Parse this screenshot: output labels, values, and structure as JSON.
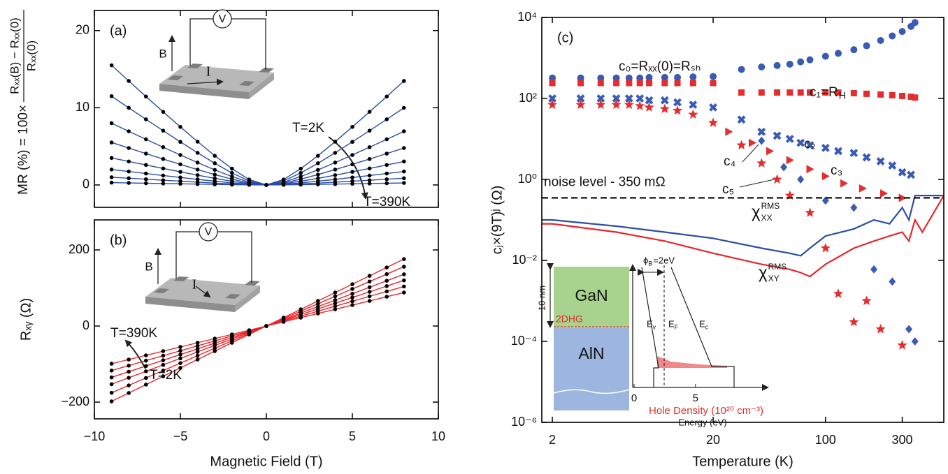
{
  "chart_data": [
    {
      "type": "line",
      "label": "(a)",
      "ylabel_prefix": "MR (%) = 100×",
      "ylabel_num": "Rₓₓ(B) − Rₓₓ(0)",
      "ylabel_den": "Rₓₓ(0)",
      "x": [
        -9,
        -8,
        -7,
        -6,
        -5,
        -4,
        -3,
        -2,
        -1,
        0,
        1,
        2,
        3,
        4,
        5,
        6,
        7,
        8
      ],
      "xlim": [
        -10,
        10
      ],
      "xticks": [
        -10,
        -5,
        0,
        5,
        10
      ],
      "show_xtick_labels": false,
      "ylim": [
        -2.9,
        22.6
      ],
      "yticks": [
        0,
        10,
        20
      ],
      "line_color": "#2b4ea2",
      "marker_color": "#000000",
      "series": [
        {
          "values": [
            15.5,
            13.47,
            11.45,
            9.47,
            7.52,
            5.61,
            3.78,
            2.11,
            0.7,
            0,
            0.7,
            2.11,
            3.78,
            5.61,
            7.52,
            9.47,
            11.45,
            13.47
          ]
        },
        {
          "values": [
            11.5,
            9.99,
            8.5,
            7.03,
            5.58,
            4.16,
            2.81,
            1.56,
            0.52,
            0,
            0.52,
            1.56,
            2.81,
            4.16,
            5.58,
            7.03,
            8.5,
            9.99
          ]
        },
        {
          "values": [
            8,
            6.95,
            5.91,
            4.89,
            3.88,
            2.9,
            1.95,
            1.09,
            0.36,
            0,
            0.36,
            1.09,
            1.95,
            2.9,
            3.88,
            4.89,
            5.91,
            6.95
          ]
        },
        {
          "values": [
            5.5,
            4.78,
            4.06,
            3.36,
            2.67,
            1.99,
            1.34,
            0.75,
            0.25,
            0,
            0.25,
            0.75,
            1.34,
            1.99,
            2.67,
            3.36,
            4.06,
            4.78
          ]
        },
        {
          "values": [
            3.5,
            3.04,
            2.59,
            2.14,
            1.7,
            1.27,
            0.85,
            0.48,
            0.16,
            0,
            0.16,
            0.48,
            0.85,
            1.27,
            1.7,
            2.14,
            2.59,
            3.04
          ]
        },
        {
          "values": [
            2,
            1.74,
            1.48,
            1.22,
            0.97,
            0.72,
            0.49,
            0.27,
            0.09,
            0,
            0.09,
            0.27,
            0.49,
            0.72,
            0.97,
            1.22,
            1.48,
            1.74
          ]
        },
        {
          "values": [
            1,
            0.87,
            0.74,
            0.61,
            0.49,
            0.36,
            0.24,
            0.14,
            0.05,
            0,
            0.05,
            0.14,
            0.24,
            0.36,
            0.49,
            0.61,
            0.74,
            0.87
          ]
        },
        {
          "values": [
            0.3,
            0.26,
            0.22,
            0.18,
            0.15,
            0.11,
            0.07,
            0.04,
            0.01,
            0,
            0.01,
            0.04,
            0.07,
            0.11,
            0.15,
            0.18,
            0.22,
            0.26
          ]
        }
      ],
      "annotations": {
        "t_low": "T=2K",
        "t_high": "T=390K"
      },
      "inset": {
        "b": "B",
        "v": "V",
        "i": "I"
      }
    },
    {
      "type": "line",
      "label": "(b)",
      "xlabel": "Magnetic Field (T)",
      "ylabel": "Rₓᵧ (Ω)",
      "x": [
        -9,
        -8,
        -7,
        -6,
        -5,
        -4,
        -3,
        -2,
        -1,
        0,
        1,
        2,
        3,
        4,
        5,
        6,
        7,
        8
      ],
      "xlim": [
        -10,
        10
      ],
      "xticks": [
        {
          "value": -10,
          "label": "−10"
        },
        {
          "value": -5,
          "label": "−5"
        },
        0,
        5,
        10
      ],
      "ylim": [
        -244,
        279
      ],
      "yticks": [
        {
          "value": -200,
          "label": "−200"
        },
        0,
        200
      ],
      "line_color": "#e8262a",
      "marker_color": "#000000",
      "series": [
        {
          "values": [
            -198,
            -176,
            -154,
            -132,
            -110,
            -88,
            -66,
            -44,
            -22,
            0,
            22,
            44,
            66,
            88,
            110,
            132,
            154,
            176
          ]
        },
        {
          "values": [
            -175.5,
            -156,
            -136.5,
            -117,
            -97.5,
            -78,
            -58.5,
            -39,
            -19.5,
            0,
            19.5,
            39,
            58.5,
            78,
            97.5,
            117,
            136.5,
            156
          ]
        },
        {
          "values": [
            -153,
            -136,
            -119,
            -102,
            -85,
            -68,
            -51,
            -34,
            -17,
            0,
            17,
            34,
            51,
            68,
            85,
            102,
            119,
            136
          ]
        },
        {
          "values": [
            -135,
            -120,
            -105,
            -90,
            -75,
            -60,
            -45,
            -30,
            -15,
            0,
            15,
            30,
            45,
            60,
            75,
            90,
            105,
            120
          ]
        },
        {
          "values": [
            -117,
            -104,
            -91,
            -78,
            -65,
            -52,
            -39,
            -26,
            -13,
            0,
            13,
            26,
            39,
            52,
            65,
            78,
            91,
            104
          ]
        },
        {
          "values": [
            -99,
            -88,
            -77,
            -66,
            -55,
            -44,
            -33,
            -22,
            -11,
            0,
            11,
            22,
            33,
            44,
            55,
            66,
            77,
            88
          ]
        }
      ],
      "annotations": {
        "t_high": "T=390K",
        "t_low": "T=2K"
      },
      "inset": {
        "b": "B",
        "v": "V",
        "i": "I"
      }
    },
    {
      "type": "scatter",
      "label": "(c)",
      "xlabel": "Temperature (K)",
      "ylabel": "cⱼ×(9T)ʲ (Ω)",
      "xscale": "log",
      "yscale": "log",
      "xlim": [
        1.72,
        544
      ],
      "xticks": [
        2,
        20,
        100,
        300
      ],
      "ylim": [
        1e-06,
        10000
      ],
      "yticks": [
        {
          "value": 10000,
          "label": "10⁴"
        },
        {
          "value": 100,
          "label": "10²"
        },
        {
          "value": 1,
          "label": "10⁰"
        },
        {
          "value": 0.01,
          "label": "10⁻²"
        },
        {
          "value": 0.0001,
          "label": "10⁻⁴"
        },
        {
          "value": 1e-06,
          "label": "10⁻⁶"
        }
      ],
      "noise_level": 0.35,
      "noise_label": "noise level - 350 mΩ",
      "series": [
        {
          "name": "c₀=Rₓₓ(0)=Rₛₕ",
          "marker": "circle",
          "color": "#3a5bb5",
          "x": [
            2,
            3,
            4,
            5,
            6,
            7,
            8,
            10,
            12,
            15,
            20,
            30,
            40,
            50,
            60,
            70,
            80,
            100,
            120,
            150,
            180,
            220,
            260,
            300,
            340,
            360
          ],
          "values": [
            320,
            320,
            320,
            320,
            320,
            320,
            330,
            330,
            330,
            340,
            350,
            520,
            600,
            650,
            700,
            800,
            900,
            1100,
            1300,
            1600,
            2000,
            2700,
            3500,
            4500,
            6000,
            7500
          ]
        },
        {
          "name": "c₁=R",
          "name_sub": "H",
          "marker": "square",
          "color": "#e52d2d",
          "x": [
            2,
            3,
            4,
            5,
            6,
            7,
            8,
            10,
            12,
            15,
            20,
            30,
            40,
            50,
            60,
            70,
            80,
            100,
            120,
            150,
            180,
            220,
            260,
            300,
            340,
            360
          ],
          "values": [
            240,
            240,
            240,
            240,
            240,
            240,
            240,
            240,
            240,
            240,
            240,
            140,
            140,
            140,
            140,
            140,
            140,
            140,
            140,
            135,
            130,
            125,
            120,
            115,
            110,
            105
          ]
        },
        {
          "name": "c₂",
          "marker": "x",
          "color": "#3a5bb5",
          "x": [
            2,
            3,
            4,
            5,
            6,
            7,
            8,
            10,
            12,
            15,
            20,
            30,
            40,
            50,
            60,
            70,
            80,
            100,
            120,
            150,
            180,
            220,
            260,
            300,
            340
          ],
          "values": [
            100,
            100,
            100,
            100,
            100,
            100,
            90,
            90,
            80,
            70,
            60,
            30,
            15,
            12,
            10,
            8,
            7,
            6,
            5,
            4.5,
            3.5,
            2.8,
            2.2,
            1.5,
            1.3
          ]
        },
        {
          "name": "c₃",
          "marker": "triangle",
          "color": "#e52d2d",
          "x": [
            25,
            35,
            45,
            60,
            80,
            100,
            130,
            170,
            230,
            300
          ],
          "values": [
            15,
            8,
            5,
            3,
            1.8,
            1.2,
            0.8,
            0.6,
            0.45,
            0.35
          ]
        },
        {
          "name": "c₄",
          "marker": "diamond",
          "color": "#3a5bb5",
          "x": [
            40,
            55,
            70,
            100,
            150,
            200,
            260,
            330,
            360
          ],
          "values": [
            9,
            2,
            1,
            0.3,
            0.2,
            0.006,
            0.003,
            0.0002,
            0.0001
          ]
        },
        {
          "name": "c₅",
          "marker": "star",
          "color": "#e52d2d",
          "x": [
            2,
            3,
            4,
            5,
            6,
            7,
            8,
            10,
            12,
            15,
            20,
            30,
            40,
            50,
            60,
            80,
            100,
            120,
            150,
            180,
            220,
            300
          ],
          "values": [
            70,
            70,
            70,
            70,
            70,
            65,
            60,
            55,
            50,
            40,
            25,
            7,
            2.5,
            1,
            0.4,
            0.15,
            0.02,
            0.0015,
            0.0003,
            0.001,
            0.0002,
            8e-05
          ]
        },
        {
          "name": "χ",
          "name_sup": "RMS",
          "name_sub": "XX",
          "style": "line",
          "color": "#2b4ea2",
          "x": [
            1.72,
            2,
            5,
            10,
            20,
            40,
            60,
            70,
            80,
            100,
            150,
            200,
            250,
            300,
            330,
            360,
            400,
            544
          ],
          "values": [
            0.1,
            0.1,
            0.07,
            0.05,
            0.035,
            0.02,
            0.015,
            0.013,
            0.02,
            0.04,
            0.06,
            0.1,
            0.08,
            0.2,
            0.1,
            0.4,
            0.4,
            0.4
          ]
        },
        {
          "name": "χ",
          "name_sup": "RMS",
          "name_sub": "XY",
          "style": "line",
          "color": "#e8262a",
          "x": [
            1.72,
            2,
            5,
            10,
            20,
            40,
            60,
            70,
            80,
            100,
            150,
            200,
            250,
            300,
            330,
            360,
            400,
            544
          ],
          "values": [
            0.08,
            0.08,
            0.05,
            0.03,
            0.015,
            0.008,
            0.006,
            0.005,
            0.004,
            0.008,
            0.02,
            0.03,
            0.04,
            0.05,
            0.03,
            0.1,
            0.05,
            0.4
          ]
        }
      ],
      "inset": {
        "gan": "GaN",
        "aln": "AlN",
        "dhg": "2DHG",
        "thickness": "10 nm",
        "phi": "ϕ",
        "phi_sub": "B",
        "phi_rest": "=2eV",
        "bands": [
          {
            "base": "E",
            "sub": "v"
          },
          {
            "base": "E",
            "sub": "F"
          },
          {
            "base": "E",
            "sub": "c"
          }
        ],
        "xlim": [
          0,
          10.7
        ],
        "xticks": [
          0,
          5
        ],
        "density_label": "Hole Density (10²⁰ cm⁻³)",
        "xlabel": "Energy (eV)"
      }
    }
  ]
}
